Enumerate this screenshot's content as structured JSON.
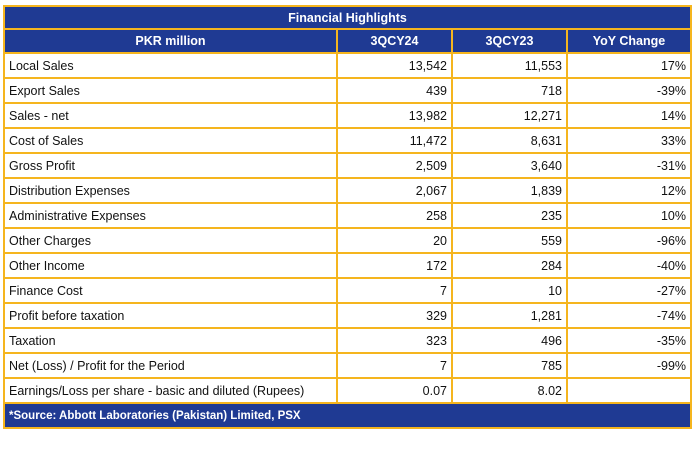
{
  "title": "Financial Highlights",
  "headers": [
    "PKR million",
    "3QCY24",
    "3QCY23",
    "YoY Change"
  ],
  "rows": [
    {
      "label": "Local Sales",
      "cy24": "13,542",
      "cy23": "11,553",
      "yoy": "17%"
    },
    {
      "label": "Export Sales",
      "cy24": "439",
      "cy23": "718",
      "yoy": "-39%"
    },
    {
      "label": "Sales - net",
      "cy24": "13,982",
      "cy23": "12,271",
      "yoy": "14%"
    },
    {
      "label": "Cost of Sales",
      "cy24": "11,472",
      "cy23": "8,631",
      "yoy": "33%"
    },
    {
      "label": "Gross Profit",
      "cy24": "2,509",
      "cy23": "3,640",
      "yoy": "-31%"
    },
    {
      "label": "Distribution Expenses",
      "cy24": "2,067",
      "cy23": "1,839",
      "yoy": "12%"
    },
    {
      "label": "Administrative Expenses",
      "cy24": "258",
      "cy23": "235",
      "yoy": "10%"
    },
    {
      "label": "Other Charges",
      "cy24": "20",
      "cy23": "559",
      "yoy": "-96%"
    },
    {
      "label": "Other Income",
      "cy24": "172",
      "cy23": "284",
      "yoy": "-40%"
    },
    {
      "label": "Finance Cost",
      "cy24": "7",
      "cy23": "10",
      "yoy": "-27%"
    },
    {
      "label": "Profit before taxation",
      "cy24": "329",
      "cy23": "1,281",
      "yoy": "-74%"
    },
    {
      "label": "Taxation",
      "cy24": "323",
      "cy23": "496",
      "yoy": "-35%"
    },
    {
      "label": "Net (Loss) / Profit for the Period",
      "cy24": "7",
      "cy23": "785",
      "yoy": "-99%"
    },
    {
      "label": "Earnings/Loss per share - basic and diluted (Rupees)",
      "cy24": "0.07",
      "cy23": "8.02",
      "yoy": ""
    }
  ],
  "source": "*Source: Abbott Laboratories (Pakistan) Limited, PSX"
}
